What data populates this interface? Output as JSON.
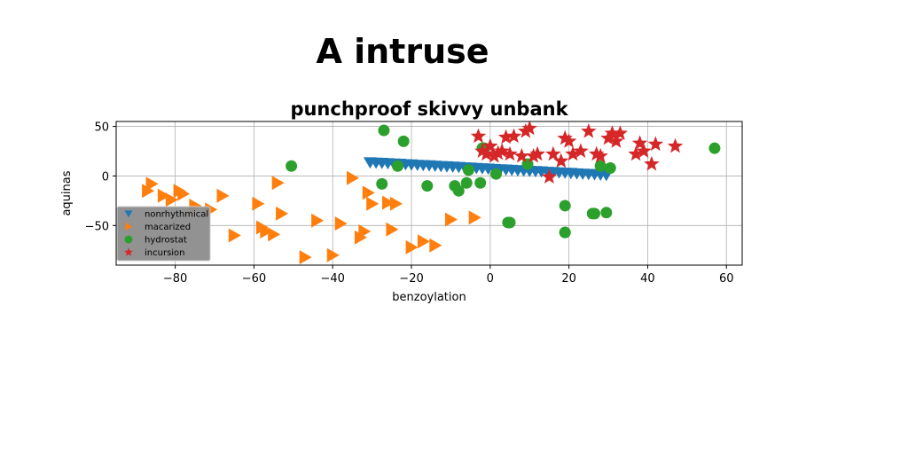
{
  "figure": {
    "suptitle": "A intruse"
  },
  "chart_data": {
    "type": "scatter",
    "title": "punchproof skivvy unbank",
    "xlabel": "benzoylation",
    "ylabel": "aquinas",
    "xlim": [
      -95,
      64
    ],
    "ylim": [
      -90,
      55
    ],
    "xticks": [
      -80,
      -60,
      -40,
      -20,
      0,
      20,
      40,
      60
    ],
    "yticks": [
      -50,
      0,
      50
    ],
    "grid": true,
    "legend_placement": "lower-left",
    "series": [
      {
        "name": "nonrhythmical",
        "marker": "triangle-down",
        "color": "#1f77b4",
        "x": [
          -30.5,
          -29,
          -27.5,
          -26,
          -24.5,
          -23,
          -21.5,
          -20,
          -18.5,
          -17,
          -15.5,
          -14,
          -12.5,
          -11,
          -9.5,
          -8,
          -6.5,
          -5,
          -3.5,
          -2,
          -0.5,
          1,
          2.5,
          4,
          5.5,
          7,
          8.5,
          10,
          11.5,
          13,
          14.5,
          16,
          17.5,
          19,
          20.5,
          22,
          23.5,
          25,
          26.5,
          28,
          29.5
        ],
        "y": [
          13.5,
          13.2,
          12.9,
          12.6,
          12.3,
          12,
          11.6,
          11.3,
          11,
          10.7,
          10.4,
          10,
          9.7,
          9.4,
          9.1,
          8.8,
          8.4,
          8.1,
          7.8,
          7.5,
          7.1,
          6.8,
          6.5,
          6.2,
          5.9,
          5.5,
          5.2,
          4.9,
          4.6,
          4.3,
          3.9,
          3.6,
          3.3,
          3,
          2.7,
          2.3,
          2,
          1.7,
          1.4,
          1.1,
          0.7
        ]
      },
      {
        "name": "macarized",
        "marker": "triangle-right",
        "color": "#ff7f0e",
        "x": [
          -86,
          -87,
          -83,
          -81,
          -79,
          -78,
          -75,
          -71,
          -68,
          -65,
          -59,
          -58,
          -57,
          -55,
          -54,
          -53,
          -47,
          -44,
          -40,
          -38,
          -35,
          -33,
          -32,
          -31,
          -30,
          -26,
          -25,
          -24,
          -20,
          -17,
          -14,
          -10,
          -4
        ],
        "y": [
          -8,
          -15,
          -20,
          -24,
          -15,
          -18,
          -30,
          -34,
          -20,
          -60,
          -28,
          -52,
          -56,
          -59,
          -7,
          -38,
          -82,
          -45,
          -80,
          -48,
          -2,
          -62,
          -56,
          -17,
          -28,
          -27,
          -54,
          -28,
          -72,
          -66,
          -70,
          -44,
          -42
        ]
      },
      {
        "name": "hydrostat",
        "marker": "circle",
        "color": "#2ca02c",
        "x": [
          -50.5,
          -27,
          -22,
          -27.5,
          -23.5,
          -16,
          -9,
          -8,
          -6,
          -5.5,
          -2.5,
          -1.5,
          -2,
          1.5,
          4.5,
          5,
          9.5,
          19,
          19,
          19,
          26,
          26.5,
          28,
          29.5,
          30.5,
          57
        ],
        "y": [
          10,
          46,
          35,
          -8,
          10,
          -10,
          -10,
          -15,
          -7,
          6,
          -7,
          28,
          28,
          2,
          -47,
          -47,
          12,
          -30,
          -57,
          -57,
          -38,
          -38,
          10,
          -37,
          8,
          28
        ]
      },
      {
        "name": "incursion",
        "marker": "star",
        "color": "#d62728",
        "x": [
          -3,
          -2,
          -1,
          0,
          1,
          2,
          3,
          4,
          5,
          6,
          8,
          9,
          10,
          11,
          12,
          15,
          16,
          18,
          19,
          20,
          21,
          23,
          25,
          27,
          28,
          30,
          31,
          32,
          33,
          37,
          38,
          39,
          41,
          42,
          47
        ],
        "y": [
          40,
          25,
          22,
          30,
          20,
          23,
          25,
          39,
          22,
          40,
          20,
          45,
          48,
          20,
          22,
          -1,
          22,
          15,
          38,
          35,
          22,
          25,
          45,
          22,
          20,
          38,
          43,
          35,
          43,
          22,
          33,
          25,
          12,
          32,
          30
        ]
      }
    ]
  }
}
